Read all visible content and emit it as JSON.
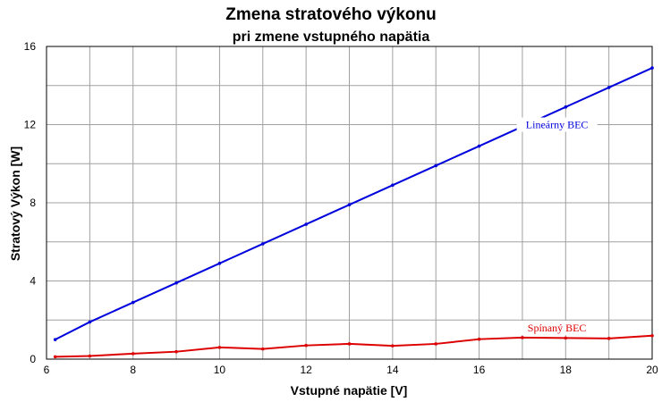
{
  "chart_data": {
    "type": "line",
    "title": "Zmena stratového výkonu",
    "subtitle": "pri zmene vstupného napätia",
    "xlabel": "Vstupné napätie [V]",
    "ylabel": "Stratový Výkon [W]",
    "xlim": [
      6,
      20
    ],
    "ylim": [
      0,
      16
    ],
    "x_ticks": [
      6,
      8,
      10,
      12,
      14,
      16,
      18,
      20
    ],
    "y_ticks": [
      0,
      4,
      8,
      12,
      16
    ],
    "grid": true,
    "x": [
      6.2,
      7,
      8,
      9,
      10,
      11,
      12,
      13,
      14,
      15,
      16,
      17,
      18,
      19,
      20
    ],
    "series": [
      {
        "name": "Lineárny BEC",
        "color": "#0000dd",
        "values": [
          1.0,
          1.9,
          2.9,
          3.9,
          4.9,
          5.9,
          6.9,
          7.9,
          8.9,
          9.9,
          10.9,
          11.9,
          12.9,
          13.9,
          14.9
        ]
      },
      {
        "name": "Spínaný BEC",
        "color": "#dd0000",
        "values": [
          0.12,
          0.16,
          0.28,
          0.38,
          0.6,
          0.52,
          0.7,
          0.78,
          0.68,
          0.78,
          1.02,
          1.1,
          1.08,
          1.06,
          1.2
        ]
      }
    ]
  }
}
